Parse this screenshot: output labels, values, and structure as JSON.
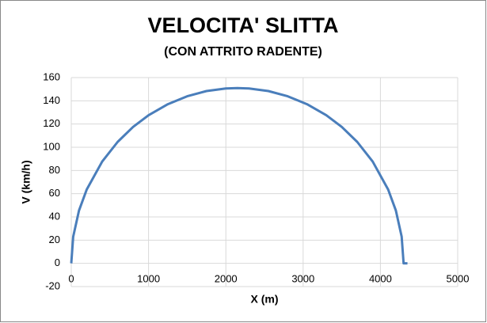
{
  "chart_data": {
    "type": "line",
    "title": "VELOCITA' SLITTA",
    "subtitle": "(CON ATTRITO RADENTE)",
    "x_label": "X (m)",
    "y_label": "V (km/h)",
    "x": [
      0,
      25,
      100,
      200,
      400,
      600,
      800,
      1000,
      1250,
      1500,
      1750,
      2000,
      2150,
      2300,
      2550,
      2800,
      3050,
      3300,
      3500,
      3700,
      3900,
      4100,
      4200,
      4275,
      4300,
      4350
    ],
    "series": [
      {
        "name": "V",
        "color": "#4a7ebb",
        "values": [
          0,
          23,
          45.5,
          63.6,
          87.7,
          104.6,
          117.5,
          127.6,
          137.1,
          143.9,
          148.4,
          150.6,
          151,
          150.6,
          148.4,
          143.9,
          137.1,
          127.6,
          117.5,
          104.6,
          87.7,
          63.6,
          45.5,
          23,
          0,
          0
        ]
      }
    ],
    "xlim": [
      0,
      5000
    ],
    "xticks": [
      0,
      1000,
      2000,
      3000,
      4000,
      5000
    ],
    "ylim": [
      -20,
      160
    ],
    "yticks": [
      -20,
      0,
      20,
      40,
      60,
      80,
      100,
      120,
      140,
      160
    ],
    "grid": true
  }
}
